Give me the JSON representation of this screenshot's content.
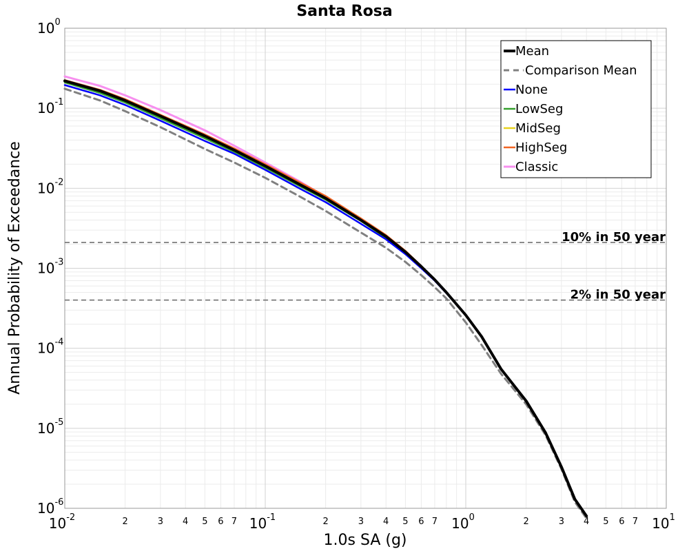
{
  "chart_data": {
    "type": "line",
    "title": "Santa Rosa",
    "xlabel": "1.0s SA (g)",
    "ylabel": "Annual Probability of Exceedance",
    "xscale": "log",
    "yscale": "log",
    "xlim": [
      0.01,
      10
    ],
    "ylim": [
      1e-06,
      1
    ],
    "grid": true,
    "legend_position": "top-right",
    "x_major_ticks": [
      {
        "base": "10",
        "exp": "-2"
      },
      {
        "base": "10",
        "exp": "-1"
      },
      {
        "base": "10",
        "exp": "0"
      },
      {
        "base": "10",
        "exp": "1"
      }
    ],
    "y_major_ticks": [
      {
        "base": "10",
        "exp": "0"
      },
      {
        "base": "10",
        "exp": "-1"
      },
      {
        "base": "10",
        "exp": "-2"
      },
      {
        "base": "10",
        "exp": "-3"
      },
      {
        "base": "10",
        "exp": "-4"
      },
      {
        "base": "10",
        "exp": "-5"
      },
      {
        "base": "10",
        "exp": "-6"
      }
    ],
    "x_minor_tick_labels": [
      "2",
      "3",
      "4",
      "5",
      "6",
      "7"
    ],
    "reference_lines": [
      {
        "label": "10% in 50 year",
        "y": 0.0021
      },
      {
        "label": "2% in 50 year",
        "y": 0.0004
      }
    ],
    "series": [
      {
        "name": "Mean",
        "color": "#000000",
        "style": "solid",
        "width": 4,
        "x": [
          0.01,
          0.015,
          0.02,
          0.03,
          0.05,
          0.07,
          0.1,
          0.15,
          0.2,
          0.3,
          0.4,
          0.5,
          0.6,
          0.7,
          0.8,
          1.0,
          1.2,
          1.5,
          2.0,
          2.5,
          3.0,
          3.5,
          4.0
        ],
        "y": [
          0.22,
          0.165,
          0.125,
          0.08,
          0.045,
          0.03,
          0.019,
          0.011,
          0.0075,
          0.004,
          0.0025,
          0.0016,
          0.00105,
          0.00072,
          0.0005,
          0.00026,
          0.00014,
          5.5e-05,
          2.2e-05,
          8.8e-06,
          3.3e-06,
          1.3e-06,
          8e-07
        ]
      },
      {
        "name": "Comparison Mean",
        "color": "#808080",
        "style": "dashed",
        "width": 3,
        "x": [
          0.01,
          0.015,
          0.02,
          0.03,
          0.05,
          0.07,
          0.1,
          0.15,
          0.2,
          0.3,
          0.4,
          0.5,
          0.6,
          0.7,
          0.8,
          1.0,
          1.2,
          1.5,
          2.0,
          2.5,
          3.0,
          3.5,
          4.0
        ],
        "y": [
          0.175,
          0.125,
          0.092,
          0.058,
          0.031,
          0.021,
          0.0135,
          0.0078,
          0.0052,
          0.0028,
          0.0018,
          0.0012,
          0.00082,
          0.00058,
          0.00042,
          0.00021,
          0.00011,
          4.8e-05,
          2e-05,
          8.2e-06,
          3.1e-06,
          1.2e-06,
          7.5e-07
        ]
      },
      {
        "name": "None",
        "color": "#0000ff",
        "style": "solid",
        "width": 2.5,
        "x": [
          0.01,
          0.015,
          0.02,
          0.03,
          0.05,
          0.07,
          0.1,
          0.15,
          0.2,
          0.3,
          0.4,
          0.5,
          0.6,
          0.7,
          0.8,
          1.0
        ],
        "y": [
          0.195,
          0.145,
          0.11,
          0.07,
          0.039,
          0.027,
          0.017,
          0.0098,
          0.0067,
          0.0036,
          0.0023,
          0.0015,
          0.001,
          0.0007,
          0.00049,
          0.00026
        ]
      },
      {
        "name": "LowSeg",
        "color": "#33a02c",
        "style": "solid",
        "width": 2.5,
        "x": [
          0.01,
          0.015,
          0.02,
          0.03,
          0.05,
          0.07,
          0.1,
          0.15,
          0.2,
          0.3,
          0.4,
          0.5,
          0.6
        ],
        "y": [
          0.21,
          0.155,
          0.118,
          0.075,
          0.042,
          0.0285,
          0.018,
          0.0105,
          0.0072,
          0.0039,
          0.0024,
          0.0016,
          0.00105
        ]
      },
      {
        "name": "MidSeg",
        "color": "#e8d21d",
        "style": "solid",
        "width": 2.5,
        "x": [
          0.01,
          0.015,
          0.02,
          0.03,
          0.05,
          0.07,
          0.1,
          0.15,
          0.2,
          0.3,
          0.4,
          0.5,
          0.6
        ],
        "y": [
          0.215,
          0.16,
          0.122,
          0.078,
          0.044,
          0.0295,
          0.0188,
          0.011,
          0.0075,
          0.004,
          0.0025,
          0.00162,
          0.00106
        ]
      },
      {
        "name": "HighSeg",
        "color": "#f26522",
        "style": "solid",
        "width": 2.5,
        "x": [
          0.01,
          0.015,
          0.02,
          0.03,
          0.05,
          0.07,
          0.1,
          0.15,
          0.2,
          0.3,
          0.4,
          0.5,
          0.6
        ],
        "y": [
          0.225,
          0.17,
          0.13,
          0.083,
          0.047,
          0.0315,
          0.02,
          0.0117,
          0.008,
          0.0042,
          0.0026,
          0.00165,
          0.00107
        ]
      },
      {
        "name": "Classic",
        "color": "#f78fef",
        "style": "solid",
        "width": 3,
        "x": [
          0.01,
          0.015,
          0.02,
          0.03,
          0.05,
          0.07,
          0.1,
          0.15,
          0.2,
          0.3,
          0.4
        ],
        "y": [
          0.25,
          0.19,
          0.145,
          0.095,
          0.053,
          0.034,
          0.021,
          0.012,
          0.0078,
          0.0041,
          0.0025
        ]
      }
    ]
  }
}
